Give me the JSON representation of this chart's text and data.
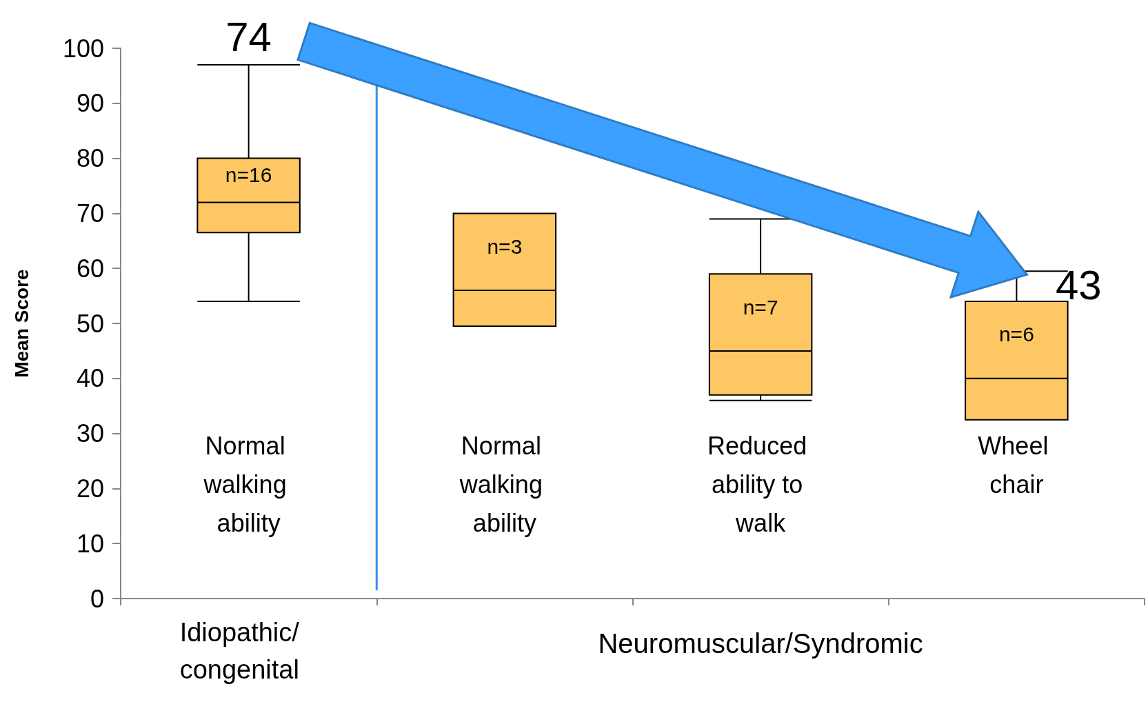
{
  "chart_data": {
    "type": "box",
    "ylabel": "Mean Score",
    "categories": [
      "Normal walking ability",
      "Normal walking ability",
      "Reduced ability to walk",
      "Wheel chair"
    ],
    "boxes": [
      {
        "low": 54,
        "q1": 66.5,
        "median": 72,
        "q3": 80,
        "high": 97
      },
      {
        "low": 49.5,
        "q1": 49.5,
        "median": 56,
        "q3": 70,
        "high": 70
      },
      {
        "low": 36,
        "q1": 37,
        "median": 45,
        "q3": 59,
        "high": 69
      },
      {
        "low": 32.5,
        "q1": 32.5,
        "median": 40,
        "q3": 54,
        "high": 59.5
      }
    ],
    "color": "#fdc864",
    "ylim": [
      0,
      100
    ],
    "yticks": [
      0,
      10,
      20,
      30,
      40,
      50,
      60,
      70,
      80,
      90,
      100
    ],
    "grid": false,
    "annotations": [
      "74",
      "43",
      "n=16",
      "n=3",
      "n=7",
      "n=6",
      "Idiopathic/\ncongenital",
      "Neuromuscular/Syndromic"
    ]
  }
}
